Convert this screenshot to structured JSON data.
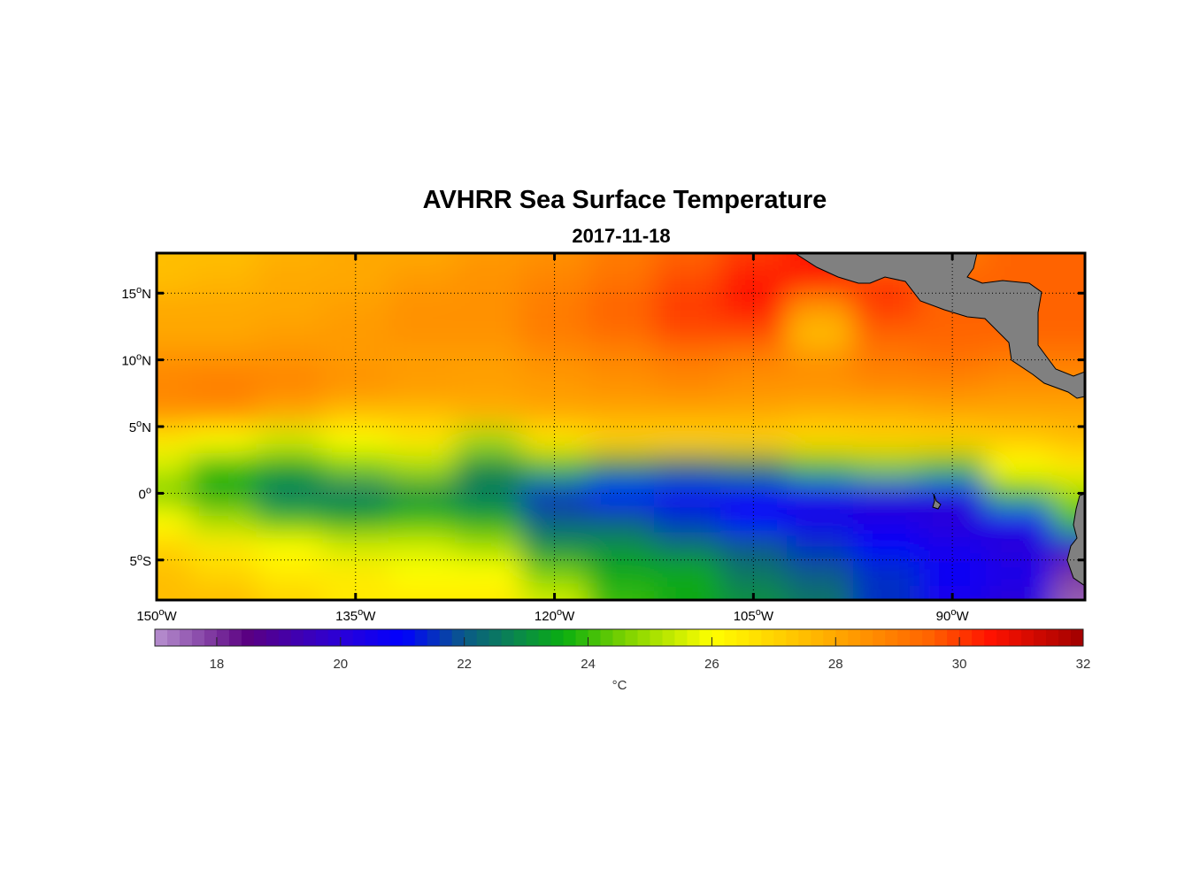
{
  "chart_data": {
    "type": "heatmap",
    "title": "AVHRR Sea Surface Temperature",
    "subtitle": "2017-11-18",
    "colorbar_label": "°C",
    "colorbar_range": [
      17,
      32
    ],
    "colorbar_ticks": [
      "18",
      "20",
      "22",
      "24",
      "26",
      "28",
      "30",
      "32"
    ],
    "colorbar_tick_values": [
      18,
      20,
      22,
      24,
      26,
      28,
      30,
      32
    ],
    "lon_range": [
      -150,
      -80
    ],
    "lat_range": [
      -8,
      18
    ],
    "x_ticks": [
      {
        "value": -150,
        "num": "150",
        "sup": "o",
        "hemi": "W"
      },
      {
        "value": -135,
        "num": "135",
        "sup": "o",
        "hemi": "W"
      },
      {
        "value": -120,
        "num": "120",
        "sup": "o",
        "hemi": "W"
      },
      {
        "value": -105,
        "num": "105",
        "sup": "o",
        "hemi": "W"
      },
      {
        "value": -90,
        "num": "90",
        "sup": "o",
        "hemi": "W"
      }
    ],
    "y_ticks": [
      {
        "value": 15,
        "num": "15",
        "sup": "o",
        "hemi": "N"
      },
      {
        "value": 10,
        "num": "10",
        "sup": "o",
        "hemi": "N"
      },
      {
        "value": 5,
        "num": "5",
        "sup": "o",
        "hemi": "N"
      },
      {
        "value": 0,
        "num": "0",
        "sup": "o",
        "hemi": ""
      },
      {
        "value": -5,
        "num": "5",
        "sup": "o",
        "hemi": "S"
      }
    ],
    "grid_lons": [
      -150,
      -145,
      -140,
      -135,
      -130,
      -125,
      -120,
      -115,
      -110,
      -105,
      -100,
      -95,
      -90,
      -85,
      -80
    ],
    "grid_lats": [
      18,
      16,
      14,
      12,
      10,
      8,
      6,
      4,
      2,
      0,
      -2,
      -4,
      -6,
      -8
    ],
    "sst": [
      [
        27.5,
        27.5,
        27.8,
        28,
        28,
        28.3,
        28.5,
        29,
        29.5,
        30,
        30.5,
        29,
        29,
        29.5,
        29.5
      ],
      [
        27.5,
        27.7,
        28,
        28,
        28.3,
        28.5,
        28.8,
        29.2,
        29.8,
        30.5,
        30.5,
        30,
        29.5,
        29.5,
        29.5
      ],
      [
        28,
        28,
        28,
        28.2,
        28.5,
        28.5,
        29,
        29.5,
        30,
        30.5,
        28.5,
        30,
        29.5,
        29.5,
        29.5
      ],
      [
        28,
        28,
        28.2,
        28.3,
        28.5,
        28.5,
        29,
        29.3,
        29.8,
        29.8,
        27.5,
        29.5,
        29.5,
        29.5,
        29.5
      ],
      [
        28.5,
        28.5,
        28.5,
        28.3,
        28.2,
        28.2,
        28.5,
        28.7,
        29,
        28.8,
        28.5,
        29,
        29.2,
        29,
        29
      ],
      [
        28.8,
        29,
        28.8,
        28.5,
        28.3,
        28.2,
        28.3,
        28.5,
        28.7,
        28.5,
        28.5,
        28.7,
        28.7,
        28.5,
        28.5
      ],
      [
        28.5,
        28.5,
        28,
        27.5,
        27.5,
        27.8,
        28,
        28,
        28,
        28,
        27.8,
        27.8,
        28,
        28,
        28
      ],
      [
        26.5,
        26,
        25.5,
        26,
        26.5,
        25,
        26.5,
        27,
        27,
        27,
        26.8,
        27,
        27,
        27.2,
        27.5
      ],
      [
        25.5,
        24,
        23.5,
        24.5,
        25,
        23,
        24,
        23,
        22.5,
        22.8,
        24,
        24.5,
        24,
        26,
        26.5
      ],
      [
        24.5,
        23.5,
        22.5,
        22.5,
        23,
        22.5,
        21.5,
        21,
        20.8,
        20.5,
        20.3,
        20,
        20.3,
        24,
        25
      ],
      [
        26,
        25,
        24,
        23.5,
        24,
        23.5,
        22,
        22,
        21.5,
        21,
        20.5,
        20.3,
        20,
        20.5,
        24
      ],
      [
        27,
        26.5,
        26,
        25.5,
        25.5,
        25,
        23,
        23,
        22.5,
        22,
        21.5,
        21,
        20.5,
        20,
        20
      ],
      [
        27.5,
        27,
        26.5,
        26.5,
        26,
        26,
        24.5,
        23.5,
        23.5,
        22.5,
        22,
        21.5,
        20.8,
        20.5,
        18
      ],
      [
        27.5,
        27.5,
        27,
        26.5,
        26.5,
        26.5,
        25.5,
        24,
        23.5,
        23,
        22.5,
        21.5,
        20.5,
        20,
        17.5
      ]
    ],
    "colormap": [
      [
        17,
        "#b892d0"
      ],
      [
        18.5,
        "#5a0082"
      ],
      [
        20,
        "#2a00d8"
      ],
      [
        21,
        "#0000ff"
      ],
      [
        22,
        "#0a5a88"
      ],
      [
        23,
        "#0a9040"
      ],
      [
        23.6,
        "#0aae10"
      ],
      [
        24.6,
        "#7cd200"
      ],
      [
        26,
        "#ffff00"
      ],
      [
        27,
        "#ffd400"
      ],
      [
        28,
        "#ffa800"
      ],
      [
        29.5,
        "#ff6400"
      ],
      [
        30.5,
        "#ff1200"
      ],
      [
        32,
        "#a00000"
      ]
    ],
    "land_color": "#808080"
  }
}
